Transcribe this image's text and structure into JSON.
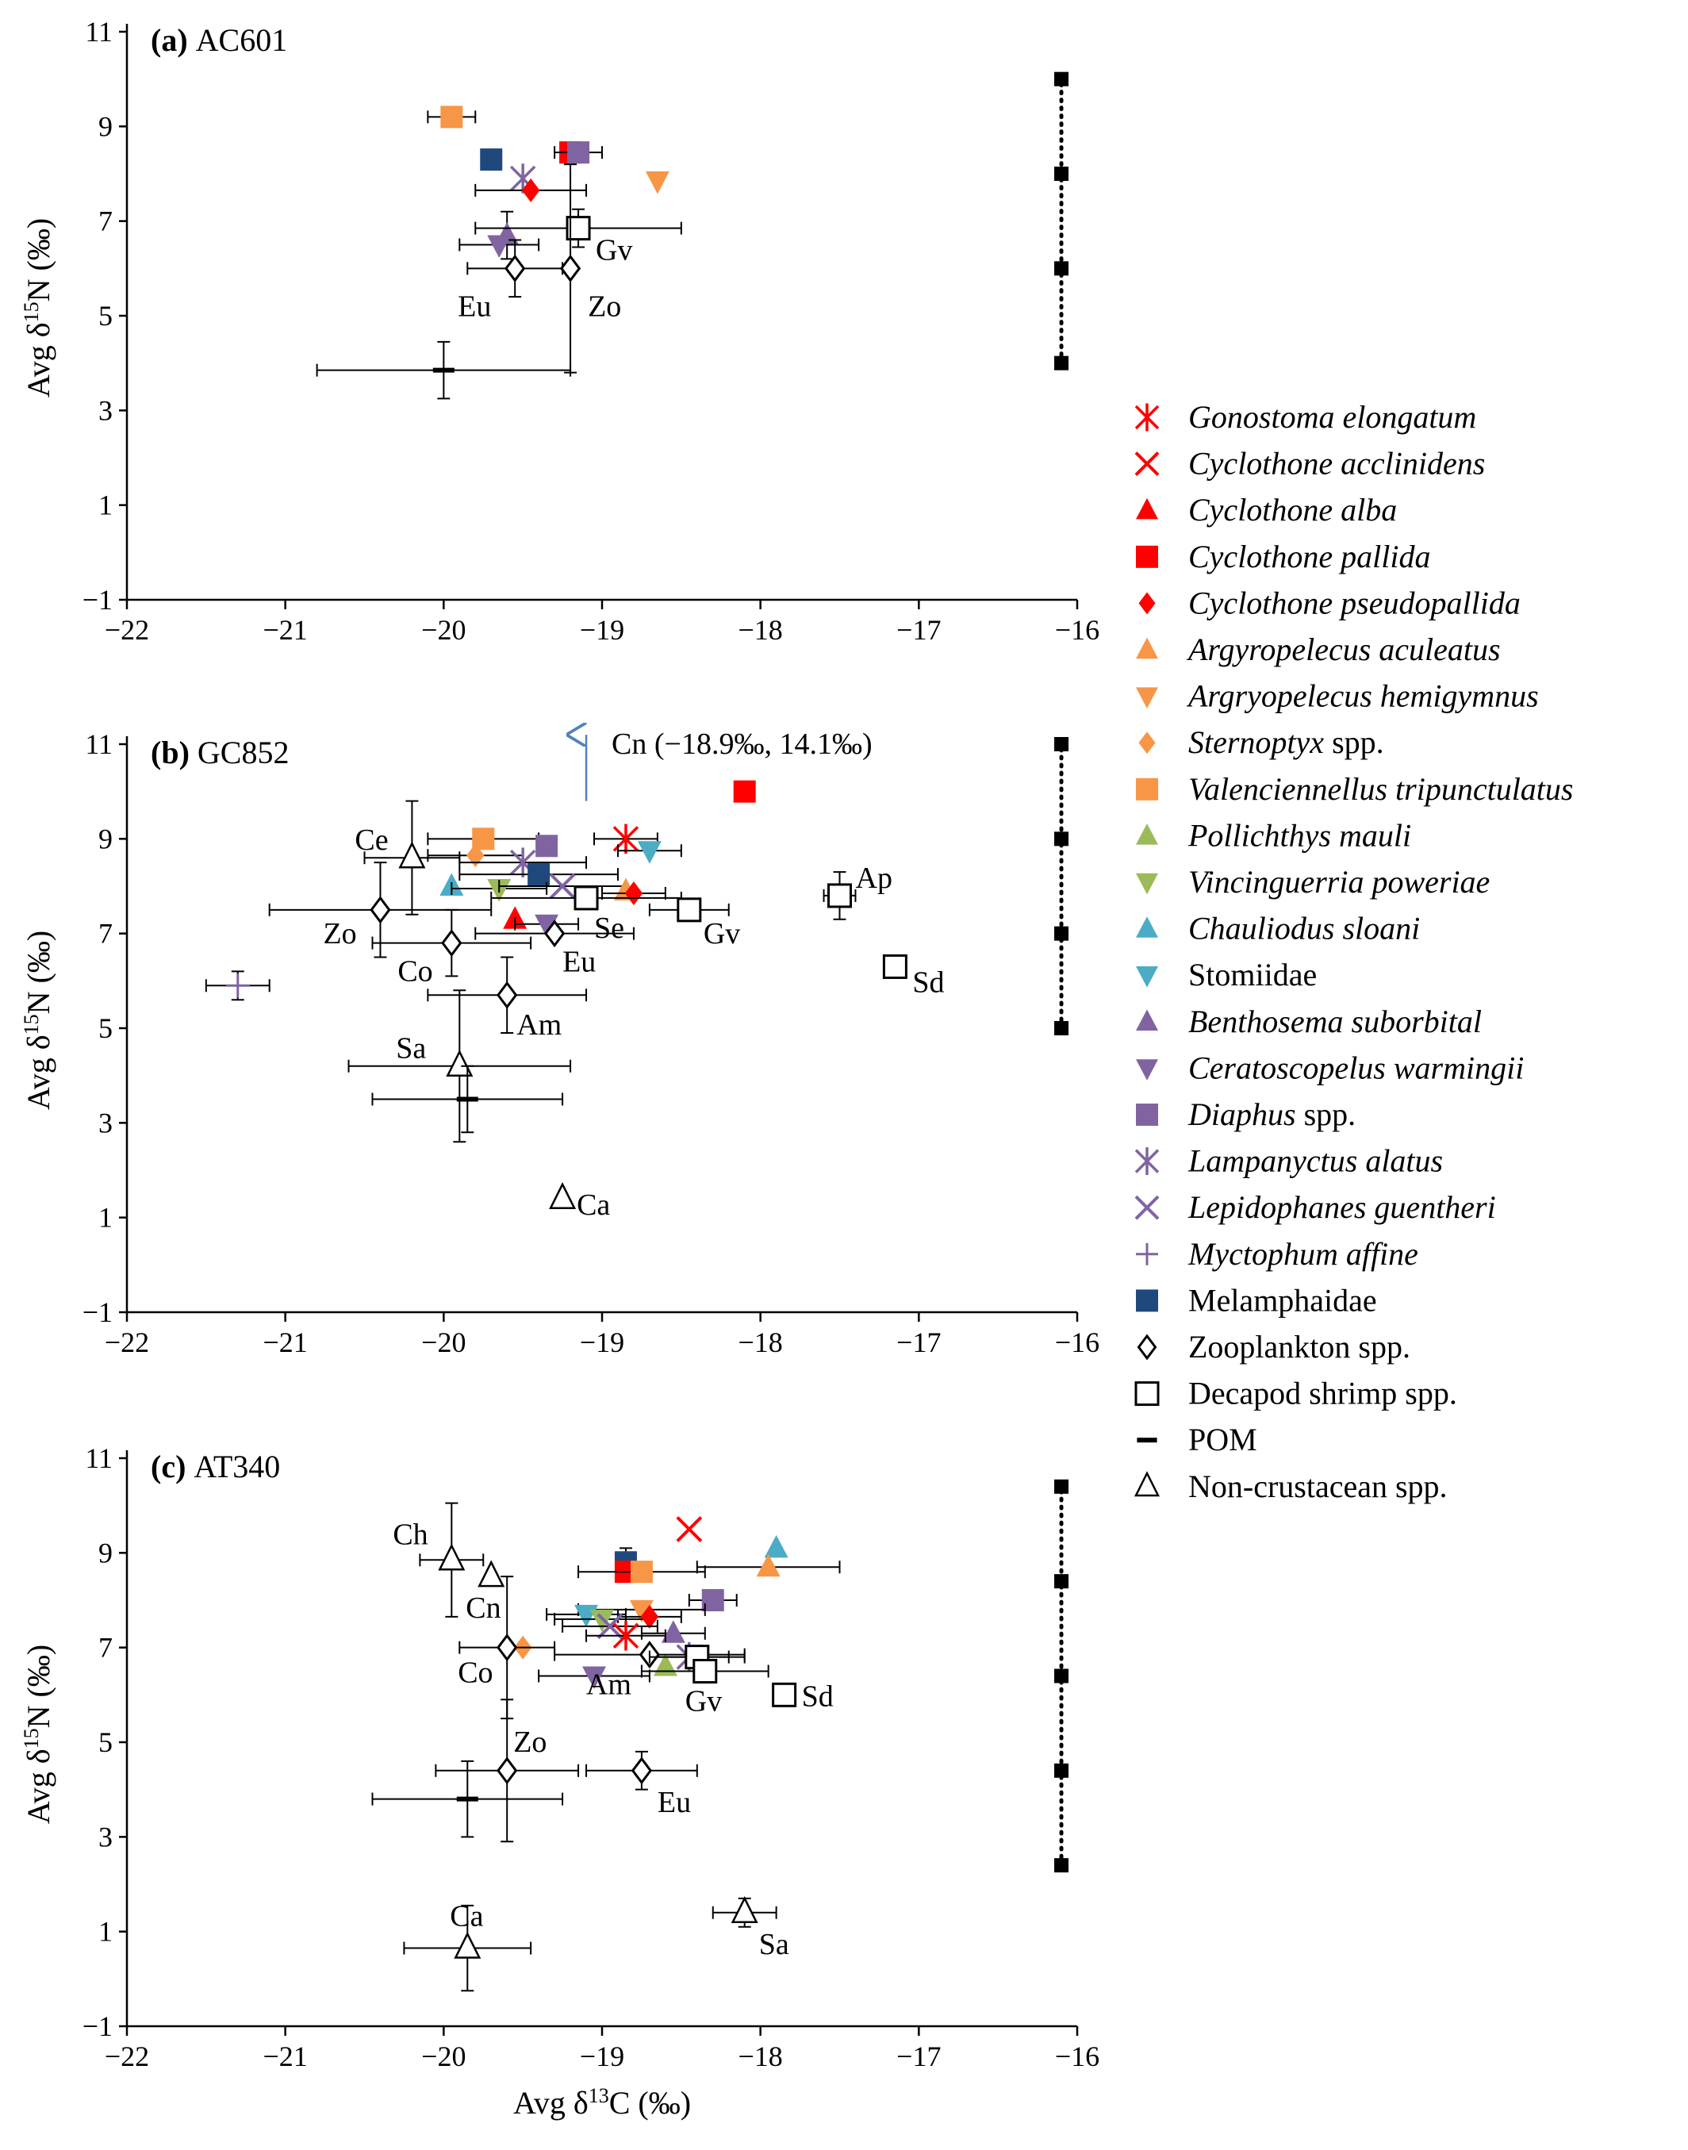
{
  "colors": {
    "red": "#ff0000",
    "orange": "#f79646",
    "green": "#9bbb59",
    "cyan": "#4bacc6",
    "purple": "#8064a2",
    "navy": "#1f497d",
    "blue_arrow": "#4f81bd",
    "black": "#000000"
  },
  "axes": {
    "x_label_prefix": "Avg δ",
    "x_label_sup": "13",
    "x_label_suffix": "C (‰)",
    "y_label_prefix": "Avg δ",
    "y_label_sup": "15",
    "y_label_suffix": "N (‰)",
    "x_ticks": [
      "−22",
      "−21",
      "−20",
      "−19",
      "−18",
      "−17",
      "−16"
    ],
    "y_ticks": [
      "−1",
      "1",
      "3",
      "5",
      "7",
      "9",
      "11"
    ]
  },
  "legend": [
    {
      "label": "Gonostoma elongatum",
      "italic": true,
      "marker": "asterisk",
      "color": "red"
    },
    {
      "label": "Cyclothone acclinidens",
      "italic": true,
      "marker": "x",
      "color": "red"
    },
    {
      "label": "Cyclothone alba",
      "italic": true,
      "marker": "triangle-up",
      "color": "red"
    },
    {
      "label": "Cyclothone pallida",
      "italic": true,
      "marker": "square",
      "color": "red"
    },
    {
      "label": "Cyclothone pseudopallida",
      "italic": true,
      "marker": "diamond",
      "color": "red"
    },
    {
      "label": "Argyropelecus aculeatus",
      "italic": true,
      "marker": "triangle-up",
      "color": "orange"
    },
    {
      "label": "Argryopelecus hemigymnus",
      "italic": true,
      "marker": "triangle-down",
      "color": "orange"
    },
    {
      "label": "Sternoptyx",
      "label_suffix": " spp.",
      "italic": true,
      "marker": "diamond",
      "color": "orange"
    },
    {
      "label": "Valenciennellus tripunctulatus",
      "italic": true,
      "marker": "square",
      "color": "orange"
    },
    {
      "label": "Pollichthys mauli",
      "italic": true,
      "marker": "triangle-up",
      "color": "green"
    },
    {
      "label": "Vincinguerria poweriae",
      "italic": true,
      "marker": "triangle-down",
      "color": "green"
    },
    {
      "label": "Chauliodus sloani",
      "italic": true,
      "marker": "triangle-up",
      "color": "cyan"
    },
    {
      "label": "Stomiidae",
      "italic": false,
      "marker": "triangle-down",
      "color": "cyan"
    },
    {
      "label": "Benthosema suborbital",
      "italic": true,
      "marker": "triangle-up",
      "color": "purple"
    },
    {
      "label": "Ceratoscopelus warmingii",
      "italic": true,
      "marker": "triangle-down",
      "color": "purple"
    },
    {
      "label": "Diaphus",
      "label_suffix": " spp.",
      "italic": true,
      "marker": "square",
      "color": "purple"
    },
    {
      "label": "Lampanyctus alatus",
      "italic": true,
      "marker": "asterisk",
      "color": "purple"
    },
    {
      "label": "Lepidophanes guentheri",
      "italic": true,
      "marker": "x",
      "color": "purple"
    },
    {
      "label": "Myctophum affine",
      "italic": true,
      "marker": "plus",
      "color": "purple"
    },
    {
      "label": "Melamphaidae",
      "italic": false,
      "marker": "square",
      "color": "navy"
    },
    {
      "label": "Zooplankton spp.",
      "italic": false,
      "marker": "open-diamond",
      "color": "black"
    },
    {
      "label": "Decapod shrimp spp.",
      "italic": false,
      "marker": "open-square",
      "color": "black"
    },
    {
      "label": "POM",
      "italic": false,
      "marker": "dash",
      "color": "black"
    },
    {
      "label": "Non-crustacean spp.",
      "italic": false,
      "marker": "open-triangle",
      "color": "black"
    }
  ],
  "chart_data": [
    {
      "type": "scatter",
      "panel": "(a)",
      "title": "AC601",
      "xlim": [
        -22,
        -16
      ],
      "ylim": [
        -1,
        11
      ],
      "trophic_scale": [
        4,
        6,
        8,
        10
      ],
      "points": [
        {
          "name": "Valenciennellus tripunctulatus",
          "x": -19.95,
          "y": 9.2,
          "xerr": 0.15,
          "marker": "square",
          "color": "orange"
        },
        {
          "name": "Melamphaidae",
          "x": -19.7,
          "y": 8.3,
          "marker": "square",
          "color": "navy"
        },
        {
          "name": "Cyclothone pallida",
          "x": -19.2,
          "y": 8.45,
          "marker": "square",
          "color": "red"
        },
        {
          "name": "Diaphus spp.",
          "x": -19.15,
          "y": 8.45,
          "xerr": 0.15,
          "yerr": 0.2,
          "marker": "square",
          "color": "purple"
        },
        {
          "name": "Lampanyctus alatus",
          "x": -19.5,
          "y": 7.9,
          "marker": "asterisk",
          "color": "purple"
        },
        {
          "name": "Cyclothone pseudopallida",
          "x": -19.45,
          "y": 7.65,
          "xerr": 0.35,
          "marker": "diamond",
          "color": "red"
        },
        {
          "name": "Argryopelecus hemigymnus",
          "x": -18.65,
          "y": 7.85,
          "marker": "triangle-down",
          "color": "orange"
        },
        {
          "name": "Benthosema suborbital",
          "x": -19.6,
          "y": 6.7,
          "yerr": 0.5,
          "marker": "triangle-up",
          "color": "purple"
        },
        {
          "name": "Ceratoscopelus warmingii",
          "x": -19.65,
          "y": 6.5,
          "xerr": 0.25,
          "marker": "triangle-down",
          "color": "purple"
        },
        {
          "name": "Gv",
          "x": -19.15,
          "y": 6.85,
          "xerr": 0.65,
          "yerr": 0.4,
          "marker": "open-square",
          "color": "black",
          "label": "Gv",
          "lx": 22,
          "ly": 40
        },
        {
          "name": "Eu",
          "x": -19.55,
          "y": 6.0,
          "xerr": 0.3,
          "yerr": 0.6,
          "marker": "open-diamond",
          "color": "black",
          "label": "Eu",
          "lx": -72,
          "ly": 60
        },
        {
          "name": "Zo",
          "x": -19.2,
          "y": 6.0,
          "yerr": 2.2,
          "marker": "open-diamond",
          "color": "black",
          "label": "Zo",
          "lx": 22,
          "ly": 60
        },
        {
          "name": "POM",
          "x": -20.0,
          "y": 3.85,
          "xerr": 0.8,
          "yerr": 0.6,
          "marker": "dash",
          "color": "black"
        }
      ]
    },
    {
      "type": "scatter",
      "panel": "(b)",
      "title": "GC852",
      "xlim": [
        -22,
        -16
      ],
      "ylim": [
        -1,
        11
      ],
      "trophic_scale": [
        5,
        7,
        9,
        11
      ],
      "annotation": {
        "text": "Cn (−18.9‰, 14.1‰)",
        "x": -19.1,
        "y": 9.8
      },
      "points": [
        {
          "name": "Cyclothone pallida",
          "x": -18.1,
          "y": 10.0,
          "marker": "square",
          "color": "red"
        },
        {
          "name": "Gonostoma elongatum",
          "x": -18.85,
          "y": 9.0,
          "xerr": 0.2,
          "marker": "asterisk",
          "color": "red"
        },
        {
          "name": "Valenciennellus tripunctulatus",
          "x": -19.75,
          "y": 9.0,
          "xerr": 0.35,
          "marker": "square",
          "color": "orange"
        },
        {
          "name": "Diaphus spp.",
          "x": -19.35,
          "y": 8.85,
          "marker": "square",
          "color": "purple"
        },
        {
          "name": "Stomiidae",
          "x": -18.7,
          "y": 8.75,
          "xerr": 0.2,
          "marker": "triangle-down",
          "color": "cyan"
        },
        {
          "name": "Sternoptyx spp.",
          "x": -19.8,
          "y": 8.65,
          "xerr": 0.3,
          "marker": "diamond",
          "color": "orange"
        },
        {
          "name": "Lampanyctus alatus",
          "x": -19.5,
          "y": 8.5,
          "xerr": 0.4,
          "marker": "asterisk",
          "color": "purple"
        },
        {
          "name": "Melamphaidae",
          "x": -19.4,
          "y": 8.25,
          "xerr": 0.5,
          "marker": "square",
          "color": "navy"
        },
        {
          "name": "Chauliodus sloani",
          "x": -19.95,
          "y": 8.0,
          "marker": "triangle-up",
          "color": "cyan"
        },
        {
          "name": "Vincinguerria poweriae",
          "x": -19.65,
          "y": 7.95,
          "xerr": 0.3,
          "marker": "triangle-down",
          "color": "green"
        },
        {
          "name": "Lepidophanes guentheri",
          "x": -19.25,
          "y": 8.0,
          "xerr": 0.4,
          "marker": "x",
          "color": "purple"
        },
        {
          "name": "Argyropelecus aculeatus",
          "x": -18.85,
          "y": 7.9,
          "marker": "triangle-up",
          "color": "orange"
        },
        {
          "name": "Cyclothone pseudopallida",
          "x": -18.8,
          "y": 7.85,
          "xerr": 0.2,
          "marker": "diamond",
          "color": "red"
        },
        {
          "name": "Cyclothone alba",
          "x": -19.55,
          "y": 7.3,
          "marker": "triangle-up",
          "color": "red"
        },
        {
          "name": "Ceratoscopelus warmingii",
          "x": -19.35,
          "y": 7.2,
          "xerr": 0.2,
          "marker": "triangle-down",
          "color": "purple"
        },
        {
          "name": "Myctophum affine",
          "x": -21.3,
          "y": 5.9,
          "xerr": 0.2,
          "yerr": 0.3,
          "marker": "plus",
          "color": "purple"
        },
        {
          "name": "Ce",
          "x": -20.2,
          "y": 8.6,
          "xerr": 0.3,
          "yerr": 1.2,
          "marker": "open-triangle",
          "color": "black",
          "label": "Ce",
          "lx": -72,
          "ly": -10
        },
        {
          "name": "Se",
          "x": -19.1,
          "y": 7.75,
          "xerr": 0.6,
          "marker": "open-square",
          "color": "black",
          "label": "Se",
          "lx": 10,
          "ly": 50
        },
        {
          "name": "Gv",
          "x": -18.45,
          "y": 7.5,
          "xerr": 0.25,
          "marker": "open-square",
          "color": "black",
          "label": "Gv",
          "lx": 18,
          "ly": 42
        },
        {
          "name": "Ap",
          "x": -17.5,
          "y": 7.8,
          "xerr": 0.1,
          "yerr": 0.5,
          "marker": "open-square",
          "color": "black",
          "label": "Ap",
          "lx": 20,
          "ly": -10
        },
        {
          "name": "Sd",
          "x": -17.15,
          "y": 6.3,
          "marker": "open-square",
          "color": "black",
          "label": "Sd",
          "lx": 22,
          "ly": 32
        },
        {
          "name": "Zo",
          "x": -20.4,
          "y": 7.5,
          "xerr": 0.7,
          "yerr": 1.0,
          "marker": "open-diamond",
          "color": "black",
          "label": "Zo",
          "lx": -72,
          "ly": 42
        },
        {
          "name": "Eu",
          "x": -19.3,
          "y": 7.0,
          "xerr": 0.5,
          "marker": "open-diamond",
          "color": "black",
          "label": "Eu",
          "lx": 10,
          "ly": 48
        },
        {
          "name": "Co",
          "x": -19.95,
          "y": 6.8,
          "xerr": 0.5,
          "yerr": 0.7,
          "marker": "open-diamond",
          "color": "black",
          "label": "Co",
          "lx": -68,
          "ly": 48
        },
        {
          "name": "Am",
          "x": -19.6,
          "y": 5.7,
          "xerr": 0.5,
          "yerr": 0.8,
          "marker": "open-diamond",
          "color": "black",
          "label": "Am",
          "lx": 12,
          "ly": 50
        },
        {
          "name": "Sa",
          "x": -19.9,
          "y": 4.2,
          "xerr": 0.7,
          "yerr": 1.6,
          "marker": "open-triangle",
          "color": "black",
          "label": "Sa",
          "lx": -80,
          "ly": -10
        },
        {
          "name": "POM",
          "x": -19.85,
          "y": 3.5,
          "xerr": 0.6,
          "yerr": 0.7,
          "marker": "dash",
          "color": "black"
        },
        {
          "name": "Ca",
          "x": -19.25,
          "y": 1.4,
          "marker": "open-triangle",
          "color": "black",
          "label": "Ca",
          "lx": 18,
          "ly": 20
        }
      ]
    },
    {
      "type": "scatter",
      "panel": "(c)",
      "title": "AT340",
      "xlim": [
        -22,
        -16
      ],
      "ylim": [
        -1,
        11
      ],
      "trophic_scale": [
        2.4,
        4.4,
        6.4,
        8.4,
        10.4
      ],
      "points": [
        {
          "name": "Cyclothone acclinidens",
          "x": -18.45,
          "y": 9.5,
          "marker": "x",
          "color": "red"
        },
        {
          "name": "Chauliodus sloani",
          "x": -17.9,
          "y": 9.1,
          "marker": "triangle-up",
          "color": "cyan"
        },
        {
          "name": "Melamphaidae",
          "x": -18.85,
          "y": 8.8,
          "yerr": 0.3,
          "marker": "square",
          "color": "navy"
        },
        {
          "name": "Argyropelecus aculeatus",
          "x": -17.95,
          "y": 8.7,
          "xerr": 0.45,
          "marker": "triangle-up",
          "color": "orange"
        },
        {
          "name": "Cyclothone pallida",
          "x": -18.85,
          "y": 8.6,
          "marker": "square",
          "color": "red"
        },
        {
          "name": "Valenciennellus tripunctulatus",
          "x": -18.75,
          "y": 8.6,
          "xerr": 0.4,
          "marker": "square",
          "color": "orange"
        },
        {
          "name": "Diaphus spp.",
          "x": -18.3,
          "y": 8.0,
          "xerr": 0.15,
          "marker": "square",
          "color": "purple"
        },
        {
          "name": "Argryopelecus hemigymnus",
          "x": -18.75,
          "y": 7.8,
          "xerr": 0.4,
          "marker": "triangle-down",
          "color": "orange"
        },
        {
          "name": "Stomiidae",
          "x": -19.1,
          "y": 7.7,
          "xerr": 0.25,
          "marker": "triangle-down",
          "color": "cyan"
        },
        {
          "name": "Vincinguerria poweriae",
          "x": -19.0,
          "y": 7.6,
          "xerr": 0.3,
          "marker": "triangle-down",
          "color": "green"
        },
        {
          "name": "Cyclothone pseudopallida",
          "x": -18.7,
          "y": 7.65,
          "xerr": 0.2,
          "marker": "diamond",
          "color": "red"
        },
        {
          "name": "Lepidophanes guentheri",
          "x": -18.95,
          "y": 7.45,
          "xerr": 0.3,
          "marker": "x",
          "color": "purple"
        },
        {
          "name": "Benthosema suborbital",
          "x": -18.55,
          "y": 7.3,
          "xerr": 0.2,
          "marker": "triangle-up",
          "color": "purple"
        },
        {
          "name": "Gonostoma elongatum",
          "x": -18.85,
          "y": 7.25,
          "xerr": 0.25,
          "marker": "asterisk",
          "color": "red"
        },
        {
          "name": "Sternoptyx spp.",
          "x": -19.5,
          "y": 7.0,
          "marker": "diamond",
          "color": "orange"
        },
        {
          "name": "Lampanyctus alatus",
          "x": -18.45,
          "y": 6.8,
          "xerr": 0.25,
          "marker": "asterisk",
          "color": "purple"
        },
        {
          "name": "Pollichthys mauli",
          "x": -18.6,
          "y": 6.6,
          "marker": "triangle-up",
          "color": "green"
        },
        {
          "name": "Ceratoscopelus warmingii",
          "x": -19.05,
          "y": 6.4,
          "xerr": 0.35,
          "marker": "triangle-down",
          "color": "purple"
        },
        {
          "name": "Ch",
          "x": -19.95,
          "y": 8.85,
          "xerr": 0.2,
          "yerr": 1.2,
          "marker": "open-triangle",
          "color": "black",
          "label": "Ch",
          "lx": -74,
          "ly": -20
        },
        {
          "name": "Cn",
          "x": -19.7,
          "y": 8.5,
          "marker": "open-triangle",
          "color": "black",
          "label": "Cn",
          "lx": -32,
          "ly": 52
        },
        {
          "name": "Co",
          "x": -19.6,
          "y": 7.0,
          "xerr": 0.3,
          "yerr": 1.5,
          "marker": "open-diamond",
          "color": "black",
          "label": "Co",
          "lx": -62,
          "ly": 44
        },
        {
          "name": "Am",
          "x": -18.7,
          "y": 6.85,
          "xerr": 0.6,
          "marker": "open-diamond",
          "color": "black",
          "label": "Am",
          "lx": -80,
          "ly": 50
        },
        {
          "name": "Dec",
          "x": -18.4,
          "y": 6.8,
          "xerr": 0.3,
          "marker": "open-square",
          "color": "black"
        },
        {
          "name": "Gv",
          "x": -18.35,
          "y": 6.5,
          "xerr": 0.4,
          "marker": "open-square",
          "color": "black",
          "label": "Gv",
          "lx": -25,
          "ly": 50
        },
        {
          "name": "Sd",
          "x": -17.85,
          "y": 6.0,
          "xerr": 0.05,
          "marker": "open-square",
          "color": "black",
          "label": "Sd",
          "lx": 22,
          "ly": 14
        },
        {
          "name": "Zo",
          "x": -19.6,
          "y": 4.4,
          "xerr": 0.45,
          "yerr": 1.5,
          "marker": "open-diamond",
          "color": "black",
          "label": "Zo",
          "lx": 8,
          "ly": -24
        },
        {
          "name": "Eu",
          "x": -18.75,
          "y": 4.4,
          "xerr": 0.35,
          "yerr": 0.4,
          "marker": "open-diamond",
          "color": "black",
          "label": "Eu",
          "lx": 20,
          "ly": 52
        },
        {
          "name": "POM",
          "x": -19.85,
          "y": 3.8,
          "xerr": 0.6,
          "yerr": 0.8,
          "marker": "dash",
          "color": "black"
        },
        {
          "name": "Sa",
          "x": -18.1,
          "y": 1.4,
          "xerr": 0.2,
          "yerr": 0.3,
          "marker": "open-triangle",
          "color": "black",
          "label": "Sa",
          "lx": 18,
          "ly": 52
        },
        {
          "name": "Ca",
          "x": -19.85,
          "y": 0.65,
          "xerr": 0.4,
          "yerr": 0.9,
          "marker": "open-triangle",
          "color": "black",
          "label": "Ca",
          "lx": -22,
          "ly": -28
        }
      ]
    }
  ]
}
